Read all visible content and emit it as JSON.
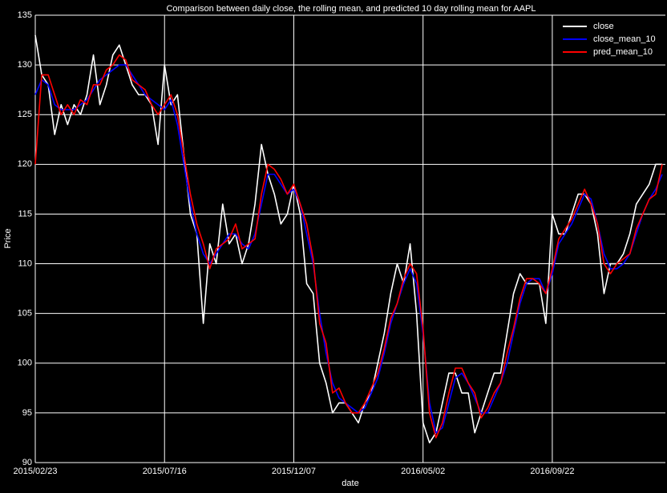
{
  "chart_data": {
    "type": "line",
    "title": "Comparison between daily close, the rolling mean, and predicted 10 day rolling mean for AAPL",
    "x_label": "date",
    "y_label": "Price",
    "categories": [
      "2015/02/23",
      null,
      null,
      null,
      null,
      null,
      null,
      null,
      null,
      null,
      null,
      null,
      null,
      null,
      null,
      null,
      null,
      null,
      null,
      null,
      "2015/07/16",
      null,
      null,
      null,
      null,
      null,
      null,
      null,
      null,
      null,
      null,
      null,
      null,
      null,
      null,
      null,
      null,
      null,
      null,
      null,
      "2015/12/07",
      null,
      null,
      null,
      null,
      null,
      null,
      null,
      null,
      null,
      null,
      null,
      null,
      null,
      null,
      null,
      null,
      null,
      null,
      null,
      "2016/05/02",
      null,
      null,
      null,
      null,
      null,
      null,
      null,
      null,
      null,
      null,
      null,
      null,
      null,
      null,
      null,
      null,
      null,
      null,
      null,
      "2016/09/22",
      null,
      null,
      null,
      null,
      null,
      null,
      null,
      null,
      null,
      null,
      null,
      null,
      null,
      null,
      null,
      null,
      null
    ],
    "series": [
      {
        "name": "close",
        "color": "#ffffff",
        "values": [
          133,
          129,
          128,
          123,
          126,
          124,
          126,
          125,
          127,
          131,
          126,
          128,
          131,
          132,
          130,
          128,
          127,
          127,
          126,
          122,
          130,
          126,
          127,
          121,
          115,
          113,
          104,
          112,
          110,
          116,
          112,
          113,
          110,
          112,
          116,
          122,
          119,
          117,
          114,
          115,
          118,
          115,
          108,
          107,
          100,
          98,
          95,
          96,
          96,
          95,
          94,
          96,
          97,
          100,
          103,
          107,
          110,
          108,
          112,
          105,
          94,
          92,
          93,
          96,
          99,
          99,
          97,
          97,
          93,
          95,
          97,
          99,
          99,
          103,
          107,
          109,
          108,
          108,
          108,
          104,
          115,
          113,
          113,
          115,
          117,
          117,
          116,
          113,
          107,
          110,
          110,
          111,
          113,
          116,
          117,
          118,
          120,
          120
        ]
      },
      {
        "name": "close_mean_10",
        "color": "#0000ff",
        "values": [
          127,
          128.5,
          128,
          126,
          125.5,
          125.5,
          125.5,
          126,
          126.5,
          127.5,
          128.5,
          129,
          129.5,
          130,
          130,
          129,
          128,
          127,
          126.5,
          126,
          125.5,
          126.5,
          124,
          120,
          116,
          113,
          111,
          110,
          111,
          112,
          113,
          113,
          112,
          111.5,
          113,
          116,
          119,
          119,
          118,
          117,
          117.5,
          116,
          113,
          110,
          105,
          101,
          98,
          96.5,
          96,
          95.5,
          95,
          95.5,
          97,
          98.5,
          101,
          104,
          106,
          108,
          109.5,
          108,
          103,
          96,
          93,
          93.5,
          96,
          98.5,
          99,
          98,
          96.5,
          95,
          95,
          96.5,
          98,
          100,
          103,
          106,
          108,
          108.5,
          108.5,
          107,
          109,
          112,
          113,
          114,
          115.5,
          117,
          116.5,
          114,
          111,
          109.5,
          109.5,
          110,
          111,
          113,
          115,
          116.5,
          117.5,
          119
        ]
      },
      {
        "name": "pred_mean_10",
        "color": "#ff0000",
        "values": [
          120,
          129,
          129,
          127,
          125,
          126,
          125,
          126.5,
          126,
          128,
          128,
          129.5,
          130,
          131,
          130.5,
          128.5,
          128,
          127.5,
          126,
          125,
          126,
          127,
          125,
          121,
          117,
          114,
          112,
          109.5,
          111.5,
          112,
          112.5,
          114,
          111.5,
          112,
          112.5,
          117,
          120,
          119.5,
          118.5,
          117,
          118,
          116,
          114,
          110.5,
          104,
          102,
          97,
          97.5,
          96,
          95,
          95,
          96,
          97.5,
          99,
          101.5,
          104.5,
          106,
          108.5,
          110,
          109,
          103.5,
          95,
          92.5,
          94,
          97,
          99.5,
          99.5,
          98,
          97,
          94.5,
          95.5,
          97,
          98,
          101,
          103.5,
          106.5,
          108.5,
          108.5,
          108,
          107,
          109.5,
          112.5,
          113.5,
          114.5,
          116,
          117.5,
          116,
          114,
          110,
          109,
          110,
          110.5,
          111,
          113.5,
          115,
          116.5,
          117,
          120
        ]
      }
    ],
    "ylim": [
      90,
      135
    ],
    "yticks": [
      90,
      95,
      100,
      105,
      110,
      115,
      120,
      125,
      130,
      135
    ],
    "grid": true,
    "legend": "upper right"
  }
}
